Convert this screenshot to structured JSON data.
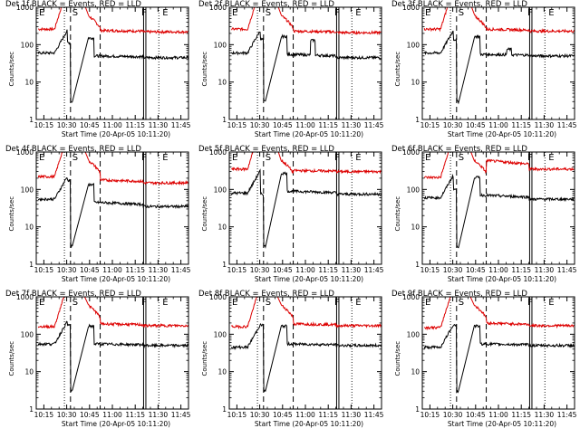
{
  "chart_data": {
    "type": "line",
    "x_ticks": [
      "10:15",
      "10:30",
      "10:45",
      "11:00",
      "11:15",
      "11:30",
      "11:45"
    ],
    "x_tick_minutes": [
      15,
      30,
      45,
      60,
      75,
      90,
      105
    ],
    "x_minutes_start": 11.33,
    "xlim_minutes": [
      10,
      110
    ],
    "ylim": [
      1,
      1000
    ],
    "y_scale": "log",
    "y_ticks": [
      "1",
      "10",
      "100",
      "1000"
    ],
    "ylabel": "Counts/sec",
    "xlabel": "Start Time (20-Apr-05 10:11:20)",
    "vertical_marker_labels": [
      "E",
      "S",
      "F",
      "E"
    ],
    "series_colors": {
      "events": "#000000",
      "lld": "#dd0000"
    },
    "panels": [
      {
        "title": "Det 1f BLACK = Events, RED = LLD"
      },
      {
        "title": "Det 2f BLACK = Events, RED = LLD"
      },
      {
        "title": "Det 3f BLACK = Events, RED = LLD"
      },
      {
        "title": "Det 4f BLACK = Events, RED = LLD"
      },
      {
        "title": "Det 5f BLACK = Events, RED = LLD"
      },
      {
        "title": "Det 6f BLACK = Events, RED = LLD"
      },
      {
        "title": "Det 7f BLACK = Events, RED = LLD"
      },
      {
        "title": "Det 8f BLACK = Events, RED = LLD"
      },
      {
        "title": "Det 9f BLACK = Events, RED = LLD"
      }
    ]
  }
}
